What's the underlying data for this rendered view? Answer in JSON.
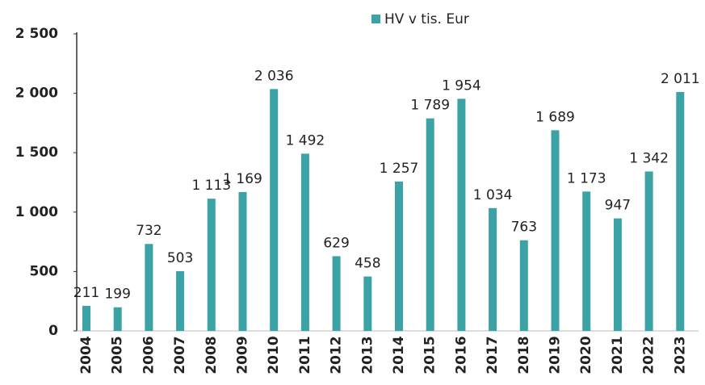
{
  "chart_data": {
    "type": "bar",
    "categories": [
      "2004",
      "2005",
      "2006",
      "2007",
      "2008",
      "2009",
      "2010",
      "2011",
      "2012",
      "2013",
      "2014",
      "2015",
      "2016",
      "2017",
      "2018",
      "2019",
      "2020",
      "2021",
      "2022",
      "2023"
    ],
    "series": [
      {
        "name": "HV v tis. Eur",
        "color": "#3ba3a6",
        "values": [
          211,
          199,
          732,
          503,
          1113,
          1169,
          2036,
          1492,
          629,
          458,
          1257,
          1789,
          1954,
          1034,
          763,
          1689,
          1173,
          947,
          1342,
          2011
        ],
        "value_labels": [
          "211",
          "199",
          "732",
          "503",
          "1 113",
          "1 169",
          "2 036",
          "1 492",
          "629",
          "458",
          "1 257",
          "1 789",
          "1 954",
          "1 034",
          "763",
          "1 689",
          "1 173",
          "947",
          "1 342",
          "2 011"
        ]
      }
    ],
    "ylim": [
      0,
      2500
    ],
    "yticks": [
      0,
      500,
      {
        "value": 1000,
        "label": "1 000"
      },
      {
        "value": 1500,
        "label": "1 500"
      },
      {
        "value": 2000,
        "label": "2 000"
      },
      {
        "value": 2500,
        "label": "2 500"
      }
    ],
    "legend": "top"
  }
}
